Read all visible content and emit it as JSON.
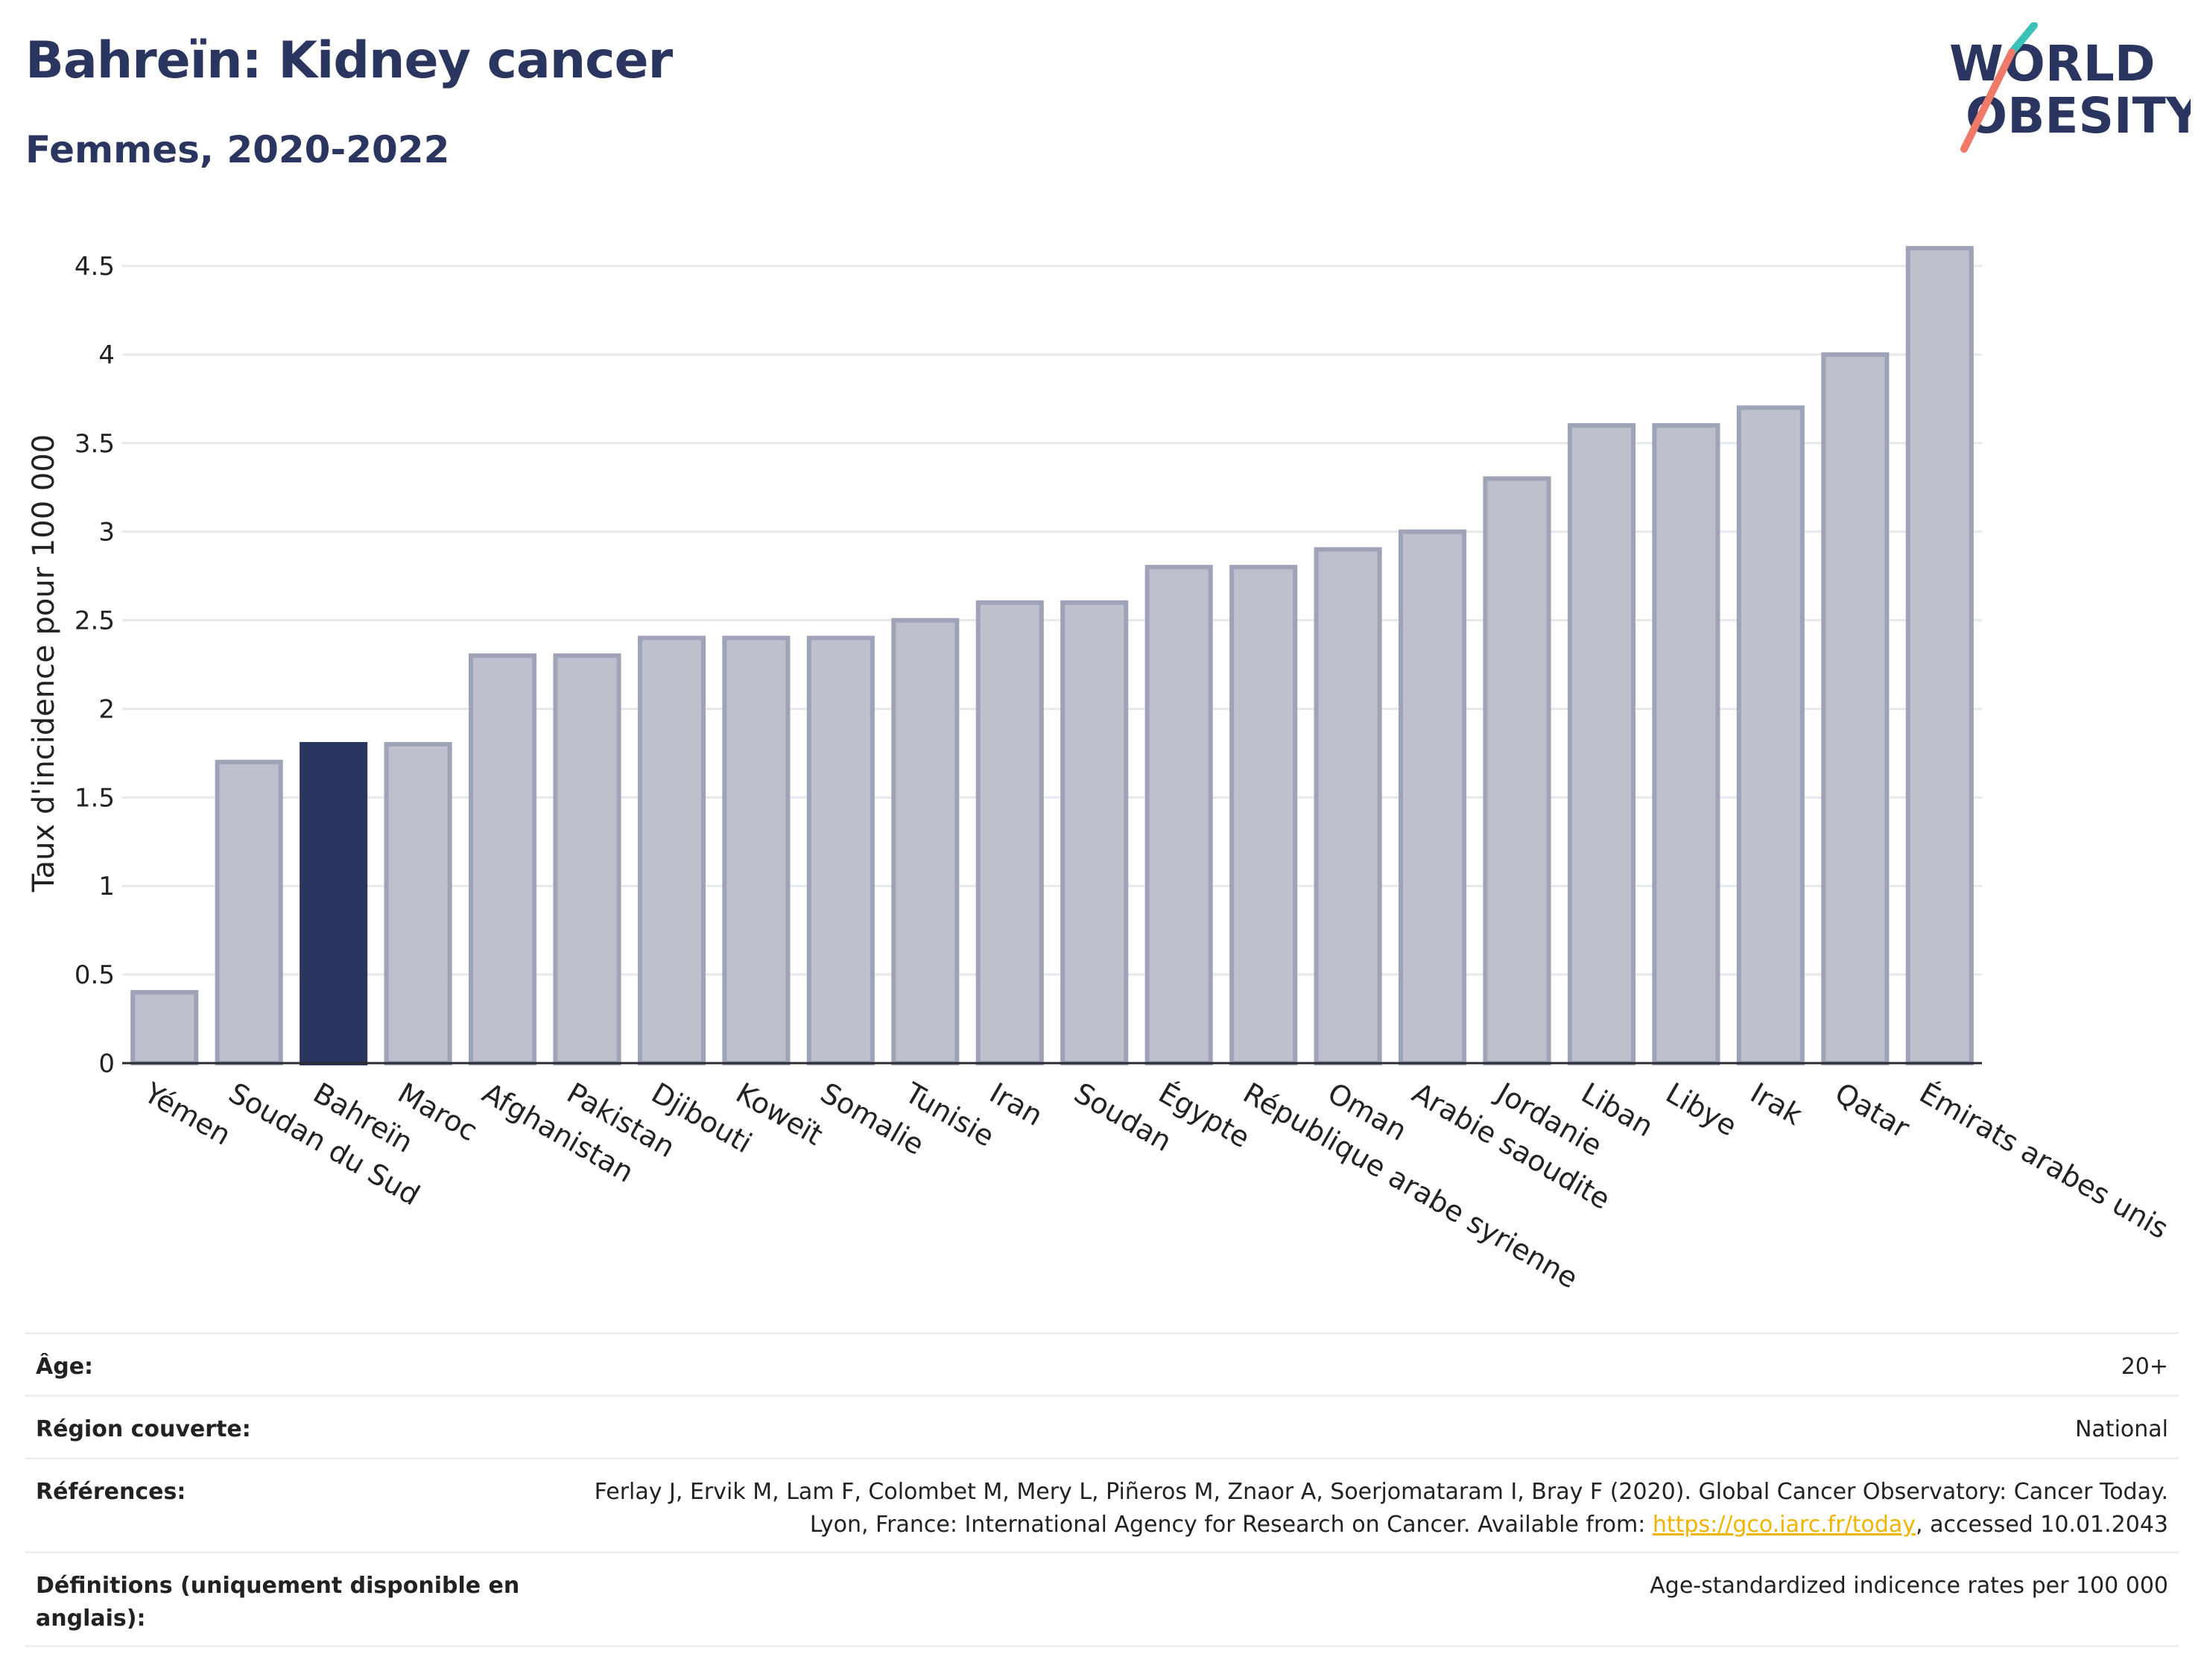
{
  "title": "Bahreïn: Kidney cancer",
  "subtitle": "Femmes, 2020-2022",
  "logo": {
    "line1": "WORLD",
    "line2": "OBESITY"
  },
  "colors": {
    "highlight": "#2b3660",
    "bar_fill": "#bec1cd",
    "bar_stroke": "#9ea3b8",
    "text": "#2b3660",
    "accent_teal": "#3cc1b8",
    "accent_coral": "#f07a6a",
    "link": "#f0b400"
  },
  "chart_data": {
    "type": "bar",
    "ylabel": "Taux d'incidence pour 100 000",
    "xlabel": "",
    "ylim": [
      0,
      4.7
    ],
    "yticks": [
      0,
      0.5,
      1,
      1.5,
      2,
      2.5,
      3,
      3.5,
      4,
      4.5
    ],
    "ytick_labels": [
      "0",
      "0.5",
      "1",
      "1.5",
      "2",
      "2.5",
      "3",
      "3.5",
      "4",
      "4.5"
    ],
    "grid": true,
    "highlight": "Bahreïn",
    "categories": [
      "Yémen",
      "Soudan du Sud",
      "Bahreïn",
      "Maroc",
      "Afghanistan",
      "Pakistan",
      "Djibouti",
      "Koweït",
      "Somalie",
      "Tunisie",
      "Iran",
      "Soudan",
      "Égypte",
      "République arabe syrienne",
      "Oman",
      "Arabie saoudite",
      "Jordanie",
      "Liban",
      "Libye",
      "Irak",
      "Qatar",
      "Émirats arabes unis"
    ],
    "values": [
      0.4,
      1.7,
      1.8,
      1.8,
      2.3,
      2.3,
      2.4,
      2.4,
      2.4,
      2.5,
      2.6,
      2.6,
      2.8,
      2.8,
      2.9,
      3.0,
      3.3,
      3.6,
      3.6,
      3.7,
      4.0,
      4.6
    ]
  },
  "meta": {
    "age_label": "Âge:",
    "age_value": "20+",
    "region_label": "Région couverte:",
    "region_value": "National",
    "ref_label": "Références:",
    "ref_text_1": "Ferlay J, Ervik M, Lam F, Colombet M, Mery L, Piñeros M, Znaor A, Soerjomataram I, Bray F (2020). Global Cancer Observatory: Cancer Today. Lyon, France: International Agency for Research on Cancer. Available from: ",
    "ref_link": "https://gco.iarc.fr/today",
    "ref_text_2": ", accessed 10.01.2043",
    "def_label": "Définitions (uniquement disponible en anglais):",
    "def_value": "Age-standardized indicence rates per 100 000"
  }
}
